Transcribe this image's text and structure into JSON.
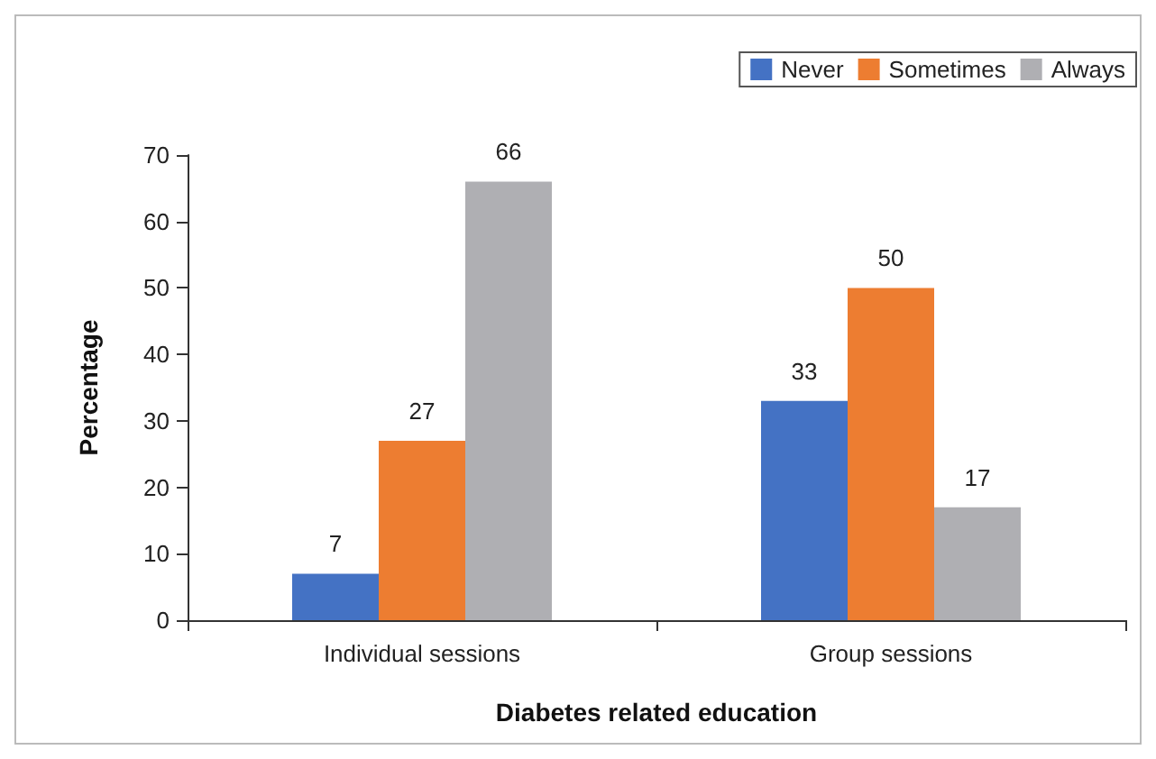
{
  "chart_data": {
    "type": "bar",
    "xlabel": "Diabetes related education",
    "ylabel": "Percentage",
    "categories": [
      "Individual sessions",
      "Group sessions"
    ],
    "series": [
      {
        "name": "Never",
        "color": "#4472c4",
        "values": [
          7,
          33
        ]
      },
      {
        "name": "Sometimes",
        "color": "#ed7d31",
        "values": [
          27,
          50
        ]
      },
      {
        "name": "Always",
        "color": "#afafb3",
        "values": [
          66,
          17
        ]
      }
    ],
    "ylim": [
      0,
      70
    ],
    "yticks": [
      0,
      10,
      20,
      30,
      40,
      50,
      60,
      70
    ],
    "grid": false,
    "legend": "top right",
    "data_labels": true
  }
}
